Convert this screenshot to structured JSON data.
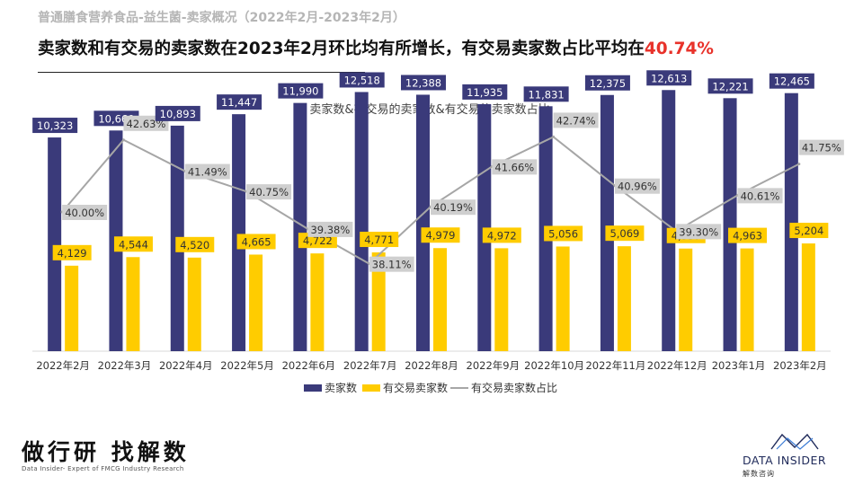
{
  "header": {
    "breadcrumb": "普通膳食营养食品-益生菌-卖家概况（2022年2月-2023年2月）",
    "headline_main": "卖家数和有交易的卖家数在2023年2月环比均有所增长，有交易卖家数占比平均在",
    "headline_accent": "40.74%"
  },
  "colors": {
    "sellers": "#3a3a7a",
    "trading_sellers": "#ffcc00",
    "ratio_line": "#a6a6a6",
    "accent": "#e8322a"
  },
  "chart_data": {
    "type": "bar",
    "title": "卖家数&有交易的卖家数&有交易的卖家数占比",
    "categories": [
      "2022年2月",
      "2022年3月",
      "2022年4月",
      "2022年5月",
      "2022年6月",
      "2022年7月",
      "2022年8月",
      "2022年9月",
      "2022年10月",
      "2022年11月",
      "2022年12月",
      "2023年1月",
      "2023年2月"
    ],
    "series": [
      {
        "name": "卖家数",
        "type": "bar",
        "axis": "left",
        "values": [
          10323,
          10660,
          10893,
          11447,
          11990,
          12518,
          12388,
          11935,
          11831,
          12375,
          12613,
          12221,
          12465
        ],
        "labels": [
          "10,323",
          "10,660",
          "10,893",
          "11,447",
          "11,990",
          "12,518",
          "12,388",
          "11,935",
          "11,831",
          "12,375",
          "12,613",
          "12,221",
          "12,465"
        ]
      },
      {
        "name": "有交易卖家数",
        "type": "bar",
        "axis": "left",
        "values": [
          4129,
          4544,
          4520,
          4665,
          4722,
          4771,
          4979,
          4972,
          5056,
          5069,
          4957,
          4963,
          5204
        ],
        "labels": [
          "4,129",
          "4,544",
          "4,520",
          "4,665",
          "4,722",
          "4,771",
          "4,979",
          "4,972",
          "5,056",
          "5,069",
          "4,957",
          "4,963",
          "5,204"
        ]
      },
      {
        "name": "有交易卖家数占比",
        "type": "line",
        "axis": "right",
        "values": [
          40.0,
          42.63,
          41.49,
          40.75,
          39.38,
          38.11,
          40.19,
          41.66,
          42.74,
          40.96,
          39.3,
          40.61,
          41.75
        ],
        "labels": [
          "40.00%",
          "42.63%",
          "41.49%",
          "40.75%",
          "39.38%",
          "38.11%",
          "40.19%",
          "41.66%",
          "42.74%",
          "40.96%",
          "39.30%",
          "40.61%",
          "41.75%"
        ]
      }
    ],
    "legend_position": "bottom",
    "grid": false
  },
  "footer": {
    "slogan": "做行研 找解数",
    "subtitle": "Data Insider- Expert of FMCG Industry Research",
    "brand_name": "DATA INSIDER",
    "brand_cn": "解数咨询"
  }
}
